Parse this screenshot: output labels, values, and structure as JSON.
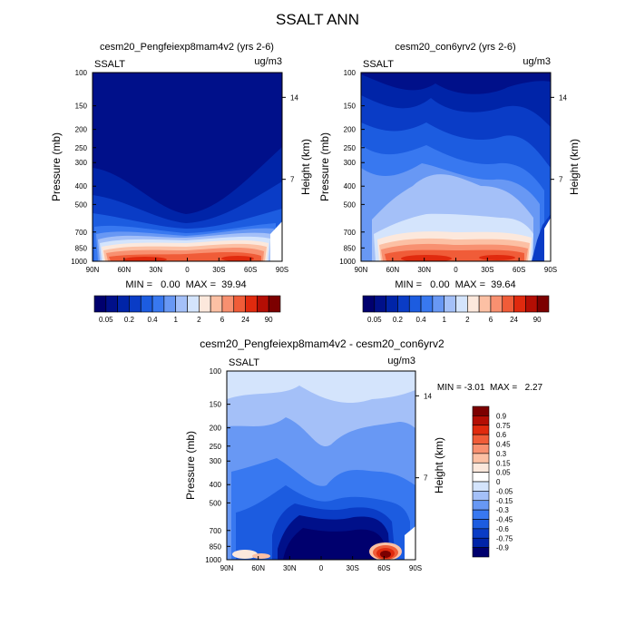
{
  "figure": {
    "title": "SSALT ANN"
  },
  "chart_data": [
    {
      "type": "contour",
      "panel": "top-left",
      "title": "cesm20_Pengfeiexp8mam4v2 (yrs 2-6)",
      "left_string": "SSALT",
      "right_string": "ug/m3",
      "ylabel": "Pressure (mb)",
      "ylabel_right": "Height (km)",
      "x_ticks": [
        "90N",
        "60N",
        "30N",
        "0",
        "30S",
        "60S",
        "90S"
      ],
      "y_ticks": [
        "100",
        "150",
        "200",
        "250",
        "300",
        "400",
        "500",
        "700",
        "850",
        "1000"
      ],
      "height_ticks": [
        "14",
        "7"
      ],
      "stats": {
        "min": "0.00",
        "max": "39.94"
      },
      "stats_text": "MIN =   0.00  MAX =  39.94",
      "contour_levels": [
        0.05,
        0.1,
        0.2,
        0.3,
        0.4,
        0.6,
        1,
        1.5,
        2,
        3,
        6,
        12,
        24,
        48,
        90
      ],
      "colorbar_labels": [
        "0.05",
        "0.2",
        "0.4",
        "1",
        "2",
        "6",
        "24",
        "90"
      ]
    },
    {
      "type": "contour",
      "panel": "top-right",
      "title": "cesm20_con6yrv2 (yrs 2-6)",
      "left_string": "SSALT",
      "right_string": "ug/m3",
      "ylabel": "Pressure (mb)",
      "ylabel_right": "Height (km)",
      "x_ticks": [
        "90N",
        "60N",
        "30N",
        "0",
        "30S",
        "60S",
        "90S"
      ],
      "y_ticks": [
        "100",
        "150",
        "200",
        "250",
        "300",
        "400",
        "500",
        "700",
        "850",
        "1000"
      ],
      "height_ticks": [
        "14",
        "7"
      ],
      "stats": {
        "min": "0.00",
        "max": "39.64"
      },
      "stats_text": "MIN =   0.00  MAX =  39.64",
      "contour_levels": [
        0.05,
        0.1,
        0.2,
        0.3,
        0.4,
        0.6,
        1,
        1.5,
        2,
        3,
        6,
        12,
        24,
        48,
        90
      ],
      "colorbar_labels": [
        "0.05",
        "0.2",
        "0.4",
        "1",
        "2",
        "6",
        "24",
        "90"
      ]
    },
    {
      "type": "contour",
      "panel": "bottom",
      "title": "cesm20_Pengfeiexp8mam4v2 - cesm20_con6yrv2",
      "left_string": "SSALT",
      "right_string": "ug/m3",
      "ylabel": "Pressure (mb)",
      "ylabel_right": "Height (km)",
      "x_ticks": [
        "90N",
        "60N",
        "30N",
        "0",
        "30S",
        "60S",
        "90S"
      ],
      "y_ticks": [
        "100",
        "150",
        "200",
        "250",
        "300",
        "400",
        "500",
        "700",
        "850",
        "1000"
      ],
      "height_ticks": [
        "14",
        "7"
      ],
      "stats": {
        "min": "-3.01",
        "max": "2.27"
      },
      "stats_text": "MIN = -3.01  MAX =   2.27",
      "contour_levels": [
        -0.9,
        -0.75,
        -0.6,
        -0.45,
        -0.3,
        -0.15,
        -0.05,
        0,
        0.05,
        0.15,
        0.3,
        0.45,
        0.6,
        0.75,
        0.9
      ],
      "colorbar_labels": [
        "0.9",
        "0.75",
        "0.6",
        "0.45",
        "0.3",
        "0.15",
        "0.05",
        "0",
        "-0.05",
        "-0.15",
        "-0.3",
        "-0.45",
        "-0.6",
        "-0.75",
        "-0.9"
      ]
    }
  ],
  "colors": {
    "scale": [
      "#00006e",
      "#00108a",
      "#0024a8",
      "#0a3cc6",
      "#1c5ce0",
      "#3878f0",
      "#6898f4",
      "#a4c0f8",
      "#d4e4fc",
      "#fce8dc",
      "#fcc0a4",
      "#f89070",
      "#f05c38",
      "#e02a0e",
      "#b40e04",
      "#7c0000"
    ],
    "diff_scale": [
      "#7c0000",
      "#b40e04",
      "#e02a0e",
      "#f05c38",
      "#f89070",
      "#fcc0a4",
      "#fce8dc",
      "#ffffff",
      "#d4e4fc",
      "#a4c0f8",
      "#6898f4",
      "#3878f0",
      "#1c5ce0",
      "#0a3cc6",
      "#0024a8",
      "#00006e"
    ]
  }
}
